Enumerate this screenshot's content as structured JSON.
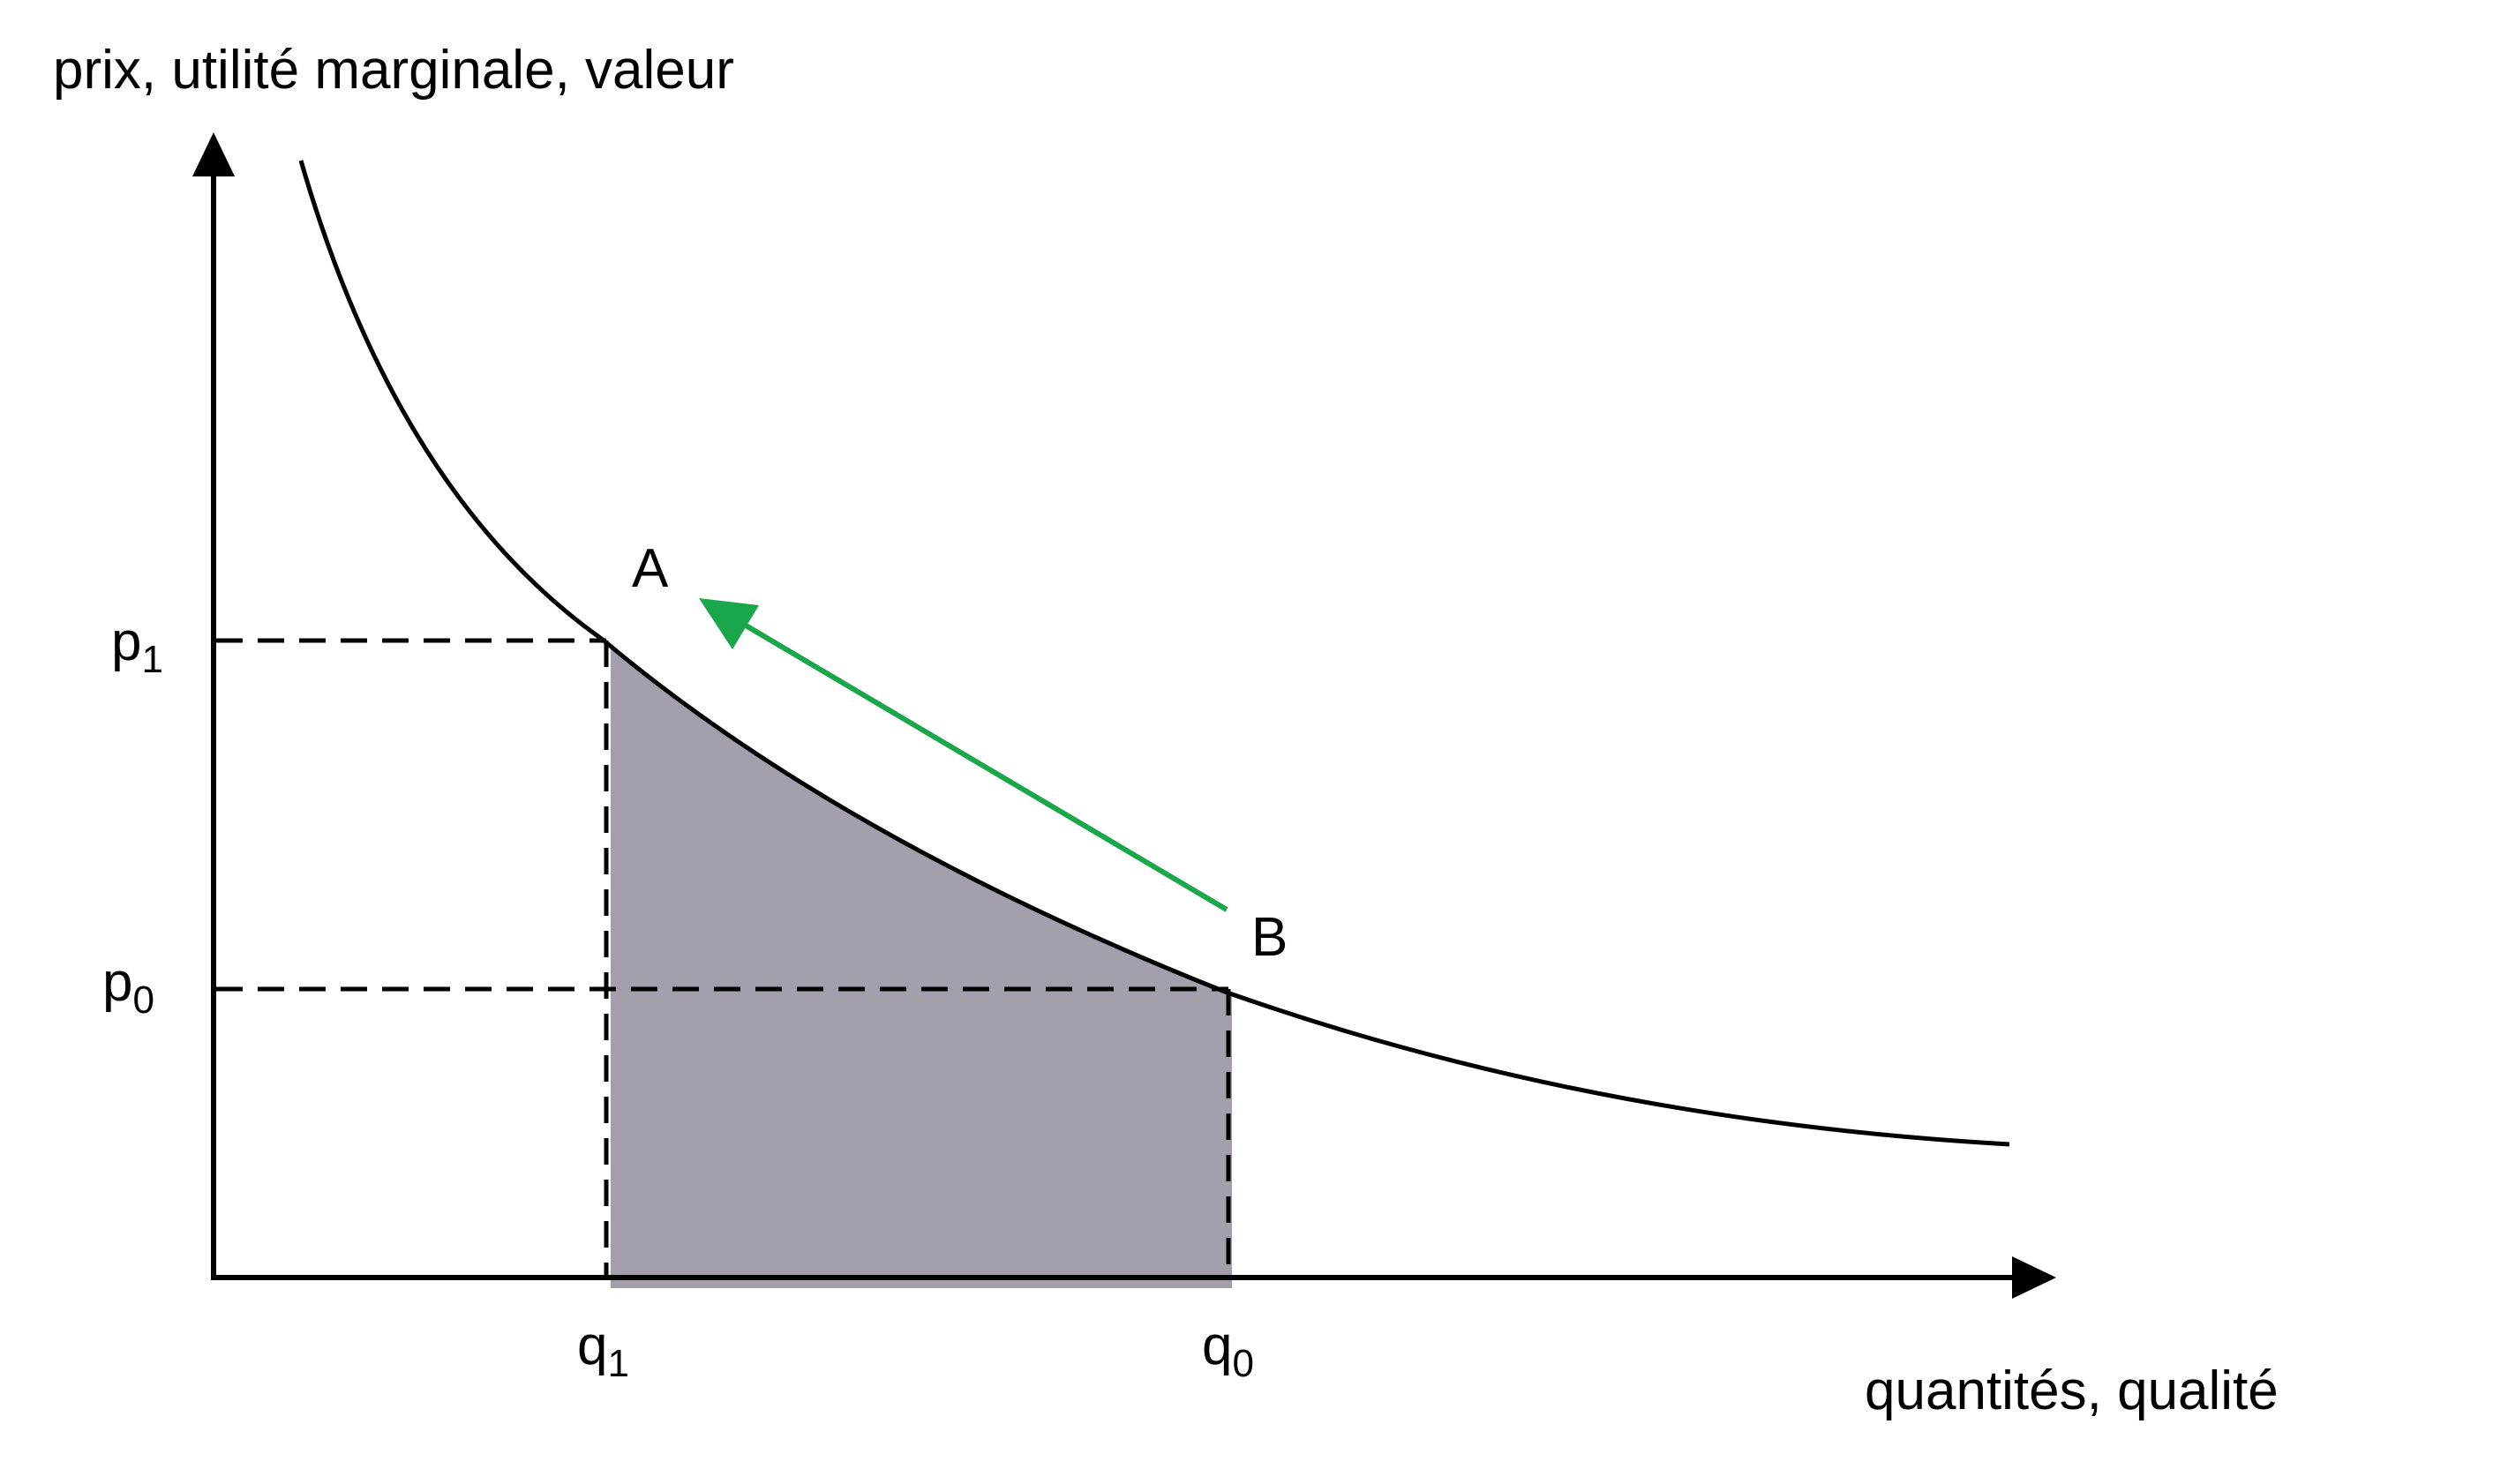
{
  "y_axis_label": "prix, utilité marginale, valeur",
  "x_axis_label": "quantités, qualité",
  "price_labels": [
    {
      "base": "p",
      "sub": "1"
    },
    {
      "base": "p",
      "sub": "0"
    }
  ],
  "quantity_labels": [
    {
      "base": "q",
      "sub": "1"
    },
    {
      "base": "q",
      "sub": "0"
    }
  ],
  "points": [
    "A",
    "B"
  ]
}
